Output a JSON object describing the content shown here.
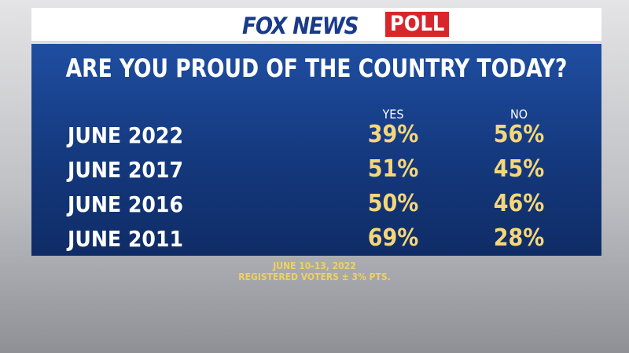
{
  "header": {
    "brand": "FOX NEWS",
    "tag": "POLL"
  },
  "title": "ARE YOU PROUD OF THE COUNTRY TODAY?",
  "table": {
    "columns": [
      "YES",
      "NO"
    ],
    "rows": [
      {
        "label": "JUNE 2022",
        "cells": [
          "39%",
          "56%"
        ]
      },
      {
        "label": "JUNE 2017",
        "cells": [
          "51%",
          "45%"
        ]
      },
      {
        "label": "JUNE 2016",
        "cells": [
          "50%",
          "46%"
        ]
      },
      {
        "label": "JUNE 2011",
        "cells": [
          "69%",
          "28%"
        ]
      }
    ]
  },
  "footer": [
    "JUNE 10-13, 2022",
    "REGISTERED VOTERS ± 3% PTS."
  ]
}
